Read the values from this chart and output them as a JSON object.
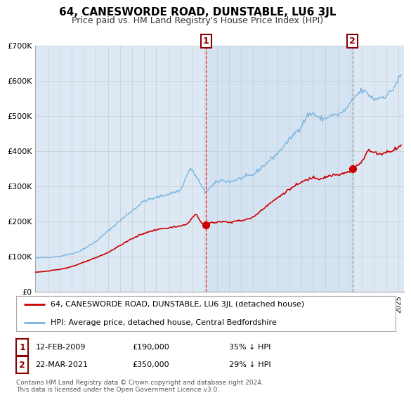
{
  "title": "64, CANESWORDE ROAD, DUNSTABLE, LU6 3JL",
  "subtitle": "Price paid vs. HM Land Registry's House Price Index (HPI)",
  "legend_line1": "64, CANESWORDE ROAD, DUNSTABLE, LU6 3JL (detached house)",
  "legend_line2": "HPI: Average price, detached house, Central Bedfordshire",
  "transaction1_date": "12-FEB-2009",
  "transaction1_price": "£190,000",
  "transaction1_hpi": "35% ↓ HPI",
  "transaction2_date": "22-MAR-2021",
  "transaction2_price": "£350,000",
  "transaction2_hpi": "29% ↓ HPI",
  "footnote": "Contains HM Land Registry data © Crown copyright and database right 2024.\nThis data is licensed under the Open Government Licence v3.0.",
  "ylim": [
    0,
    700000
  ],
  "yticks": [
    0,
    100000,
    200000,
    300000,
    400000,
    500000,
    600000,
    700000
  ],
  "ytick_labels": [
    "£0",
    "£100K",
    "£200K",
    "£300K",
    "£400K",
    "£500K",
    "£600K",
    "£700K"
  ],
  "background_color": "#ffffff",
  "plot_bg_color": "#dce9f5",
  "hpi_color": "#7ab4e0",
  "price_color": "#cc0000",
  "grid_color": "#cccccc",
  "marker1_x": 2009.12,
  "marker1_y": 190000,
  "marker2_x": 2021.22,
  "marker2_y": 350000,
  "vline1_x": 2009.12,
  "vline2_x": 2021.22,
  "xmin": 1995,
  "xmax": 2025.5
}
